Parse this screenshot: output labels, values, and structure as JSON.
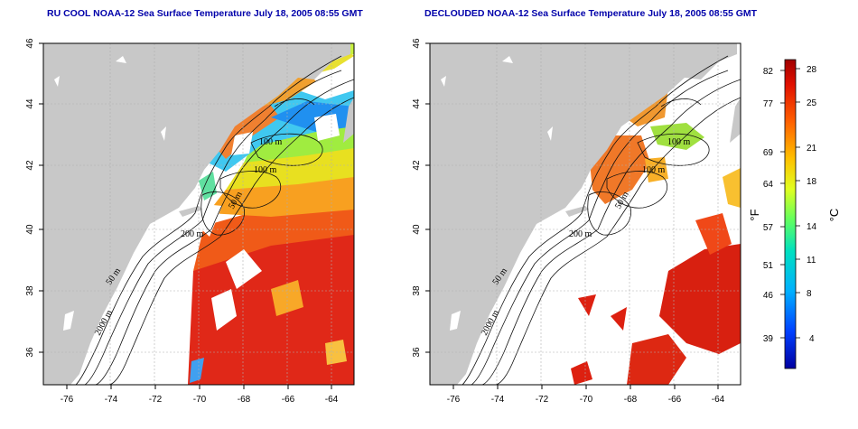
{
  "maps": [
    {
      "title": "RU COOL NOAA-12 Sea Surface Temperature July 18, 2005 08:55 GMT",
      "lon_ticks": [
        "-76",
        "-74",
        "-72",
        "-70",
        "-68",
        "-66",
        "-64"
      ],
      "lat_ticks": [
        "46",
        "44",
        "42",
        "40",
        "38",
        "36"
      ],
      "contour_labels": [
        "100 m",
        "100 m",
        "50 m",
        "200 m",
        "50 m",
        "2000 m"
      ]
    },
    {
      "title": "DECLOUDED NOAA-12 Sea Surface Temperature July 18, 2005 08:55 GMT",
      "lon_ticks": [
        "-76",
        "-74",
        "-72",
        "-70",
        "-68",
        "-66",
        "-64"
      ],
      "lat_ticks": [
        "46",
        "44",
        "42",
        "40",
        "38",
        "36"
      ],
      "contour_labels": [
        "100 m",
        "100 m",
        "50 m",
        "200 m",
        "50 m",
        "2000 m"
      ]
    }
  ],
  "colorbar": {
    "unit_left": "°F",
    "unit_right": "°C",
    "fahrenheit_ticks": [
      "82",
      "77",
      "69",
      "64",
      "57",
      "51",
      "46",
      "39"
    ],
    "celsius_ticks": [
      "28",
      "25",
      "21",
      "18",
      "14",
      "11",
      "8",
      "4"
    ]
  },
  "colors": {
    "land": "#c8c8c8",
    "title": "#0000aa",
    "warm": "#dd2010",
    "cold": "#1040e0"
  }
}
